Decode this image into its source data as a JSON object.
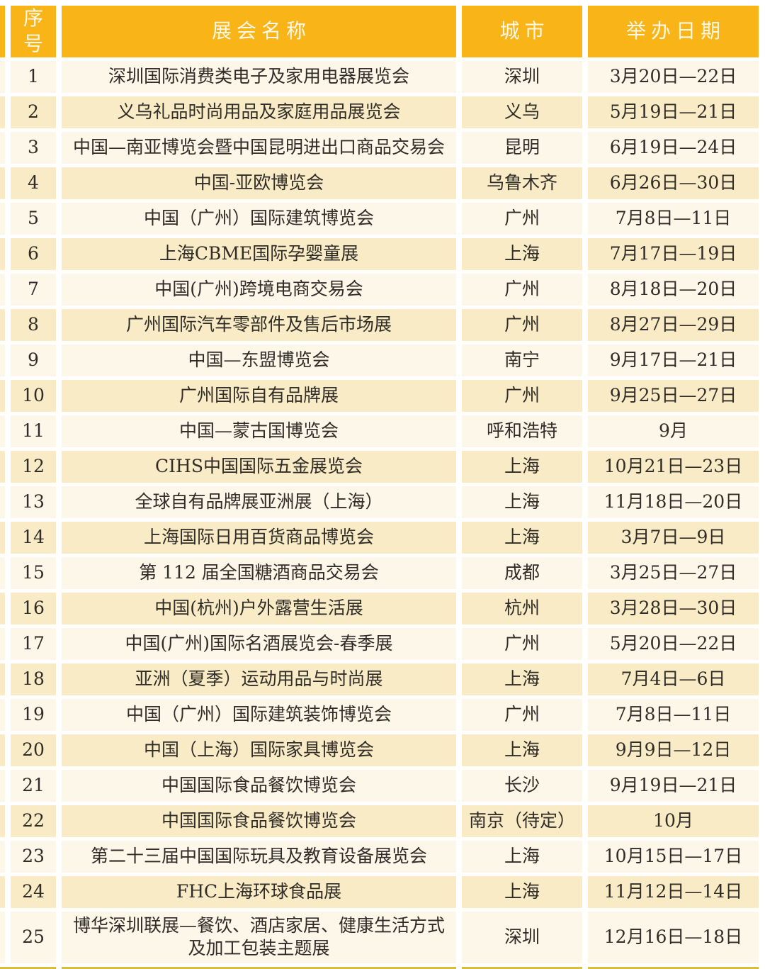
{
  "table": {
    "headers": {
      "no": "序号",
      "name": "展会名称",
      "city": "城市",
      "date": "举办日期"
    },
    "rows": [
      {
        "no": "1",
        "name": "深圳国际消费类电子及家用电器展览会",
        "city": "深圳",
        "date": "3月20日—22日"
      },
      {
        "no": "2",
        "name": "义乌礼品时尚用品及家庭用品展览会",
        "city": "义乌",
        "date": "5月19日—21日"
      },
      {
        "no": "3",
        "name": "中国—南亚博览会暨中国昆明进出口商品交易会",
        "city": "昆明",
        "date": "6月19日—24日"
      },
      {
        "no": "4",
        "name": "中国-亚欧博览会",
        "city": "乌鲁木齐",
        "date": "6月26日—30日"
      },
      {
        "no": "5",
        "name": "中国（广州）国际建筑博览会",
        "city": "广州",
        "date": "7月8日—11日"
      },
      {
        "no": "6",
        "name": "上海CBME国际孕婴童展",
        "city": "上海",
        "date": "7月17日—19日"
      },
      {
        "no": "7",
        "name": "中国(广州)跨境电商交易会",
        "city": "广州",
        "date": "8月18日—20日"
      },
      {
        "no": "8",
        "name": "广州国际汽车零部件及售后市场展",
        "city": "广州",
        "date": "8月27日—29日"
      },
      {
        "no": "9",
        "name": "中国—东盟博览会",
        "city": "南宁",
        "date": "9月17日—21日"
      },
      {
        "no": "10",
        "name": "广州国际自有品牌展",
        "city": "广州",
        "date": "9月25日—27日"
      },
      {
        "no": "11",
        "name": "中国—蒙古国博览会",
        "city": "呼和浩特",
        "date": "9月"
      },
      {
        "no": "12",
        "name": "CIHS中国国际五金展览会",
        "city": "上海",
        "date": "10月21日—23日"
      },
      {
        "no": "13",
        "name": "全球自有品牌展亚洲展（上海）",
        "city": "上海",
        "date": "11月18日—20日"
      },
      {
        "no": "14",
        "name": "上海国际日用百货商品博览会",
        "city": "上海",
        "date": "3月7日—9日"
      },
      {
        "no": "15",
        "name": "第 112 届全国糖酒商品交易会",
        "city": "成都",
        "date": "3月25日—27日"
      },
      {
        "no": "16",
        "name": "中国(杭州)户外露营生活展",
        "city": "杭州",
        "date": "3月28日—30日"
      },
      {
        "no": "17",
        "name": "中国(广州)国际名酒展览会-春季展",
        "city": "广州",
        "date": "5月20日—22日"
      },
      {
        "no": "18",
        "name": "亚洲（夏季）运动用品与时尚展",
        "city": "上海",
        "date": "7月4日—6日"
      },
      {
        "no": "19",
        "name": "中国（广州）国际建筑装饰博览会",
        "city": "广州",
        "date": "7月8日—11日"
      },
      {
        "no": "20",
        "name": "中国（上海）国际家具博览会",
        "city": "上海",
        "date": "9月9日—12日"
      },
      {
        "no": "21",
        "name": "中国国际食品餐饮博览会",
        "city": "长沙",
        "date": "9月19日—21日"
      },
      {
        "no": "22",
        "name": "中国国际食品餐饮博览会",
        "city": "南京（待定）",
        "date": "10月"
      },
      {
        "no": "23",
        "name": "第二十三届中国国际玩具及教育设备展览会",
        "city": "上海",
        "date": "10月15日—17日"
      },
      {
        "no": "24",
        "name": "FHC上海环球食品展",
        "city": "上海",
        "date": "11月12日—14日"
      },
      {
        "no": "25",
        "name": "博华深圳联展—餐饮、酒店家居、健康生活方式及加工包装主题展",
        "city": "深圳",
        "date": "12月16日—18日"
      }
    ]
  },
  "colors": {
    "header_bg": "#F9B517",
    "header_text": "#FDF8E8",
    "row_odd_bg": "#FCF7E8",
    "row_even_bg": "#F8EBC5",
    "bottom_line": "#D9BD3F",
    "body_text": "#302C27"
  }
}
